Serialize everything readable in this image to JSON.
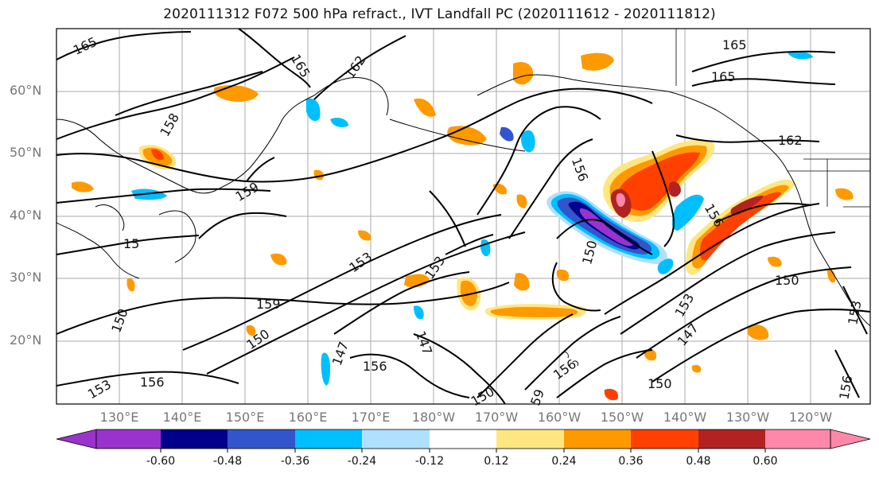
{
  "title": "2020111312 F072 500 hPa refract., IVT Landfall PC (2020111612 - 2020111812)",
  "map": {
    "lat_ticks": [
      "60°N",
      "50°N",
      "40°N",
      "30°N",
      "20°N"
    ],
    "lon_ticks": [
      "130°E",
      "140°E",
      "150°E",
      "160°E",
      "170°E",
      "180°W",
      "170°W",
      "160°W",
      "150°W",
      "140°W",
      "130°W",
      "120°W"
    ],
    "contour_labels": [
      "165",
      "165",
      "162",
      "165",
      "165",
      "162",
      "158",
      "159",
      "15",
      "153",
      "153",
      "150",
      "159",
      "150",
      "147",
      "156",
      "147",
      "150",
      "156",
      "59",
      "156",
      "150",
      "153",
      "147",
      "150",
      "150",
      "153",
      "153",
      "156",
      "156",
      "156"
    ]
  },
  "colorbar": {
    "colors": [
      "#9933cc",
      "#00008b",
      "#3355cc",
      "#00bfff",
      "#b0e0ff",
      "#ffffff",
      "#ffe680",
      "#ff9900",
      "#ff4000",
      "#b22222",
      "#ff88aa"
    ],
    "tick_labels": [
      "-0.60",
      "-0.48",
      "-0.36",
      "-0.24",
      "-0.12",
      "0.12",
      "0.24",
      "0.36",
      "0.48",
      "0.60"
    ]
  }
}
